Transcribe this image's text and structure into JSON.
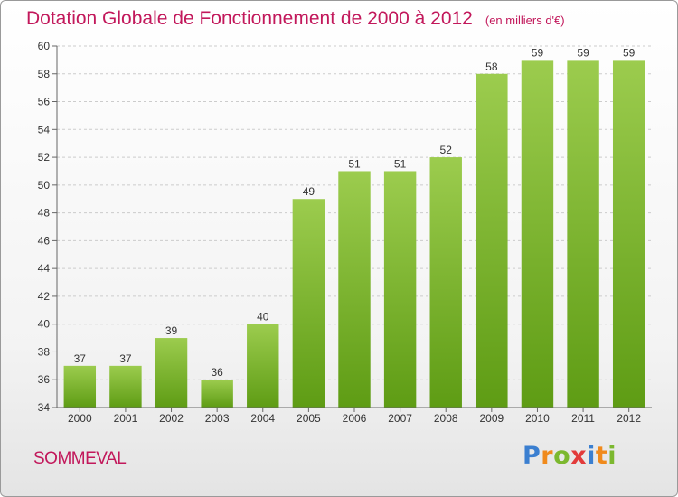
{
  "title": "Dotation Globale de Fonctionnement de 2000 à 2012",
  "unit_note": "(en milliers d'€)",
  "commune": "SOMMEVAL",
  "logo_text": "Proxiti",
  "colors": {
    "accent": "#c2185b",
    "bar_top": "#9ccc4e",
    "bar_bottom": "#5e9c14",
    "grid": "#cccccc"
  },
  "chart_data": {
    "type": "bar",
    "title": "Dotation Globale de Fonctionnement de 2000 à 2012",
    "subtitle": "(en milliers d'€)",
    "xlabel": "",
    "ylabel": "",
    "categories": [
      "2000",
      "2001",
      "2002",
      "2003",
      "2004",
      "2005",
      "2006",
      "2007",
      "2008",
      "2009",
      "2010",
      "2011",
      "2012"
    ],
    "values": [
      37,
      37,
      39,
      36,
      40,
      49,
      51,
      51,
      52,
      58,
      59,
      59,
      59
    ],
    "ylim": [
      34,
      60
    ],
    "yticks": [
      34,
      36,
      38,
      40,
      42,
      44,
      46,
      48,
      50,
      52,
      54,
      56,
      58,
      60
    ],
    "grid": true,
    "data_labels": true
  }
}
